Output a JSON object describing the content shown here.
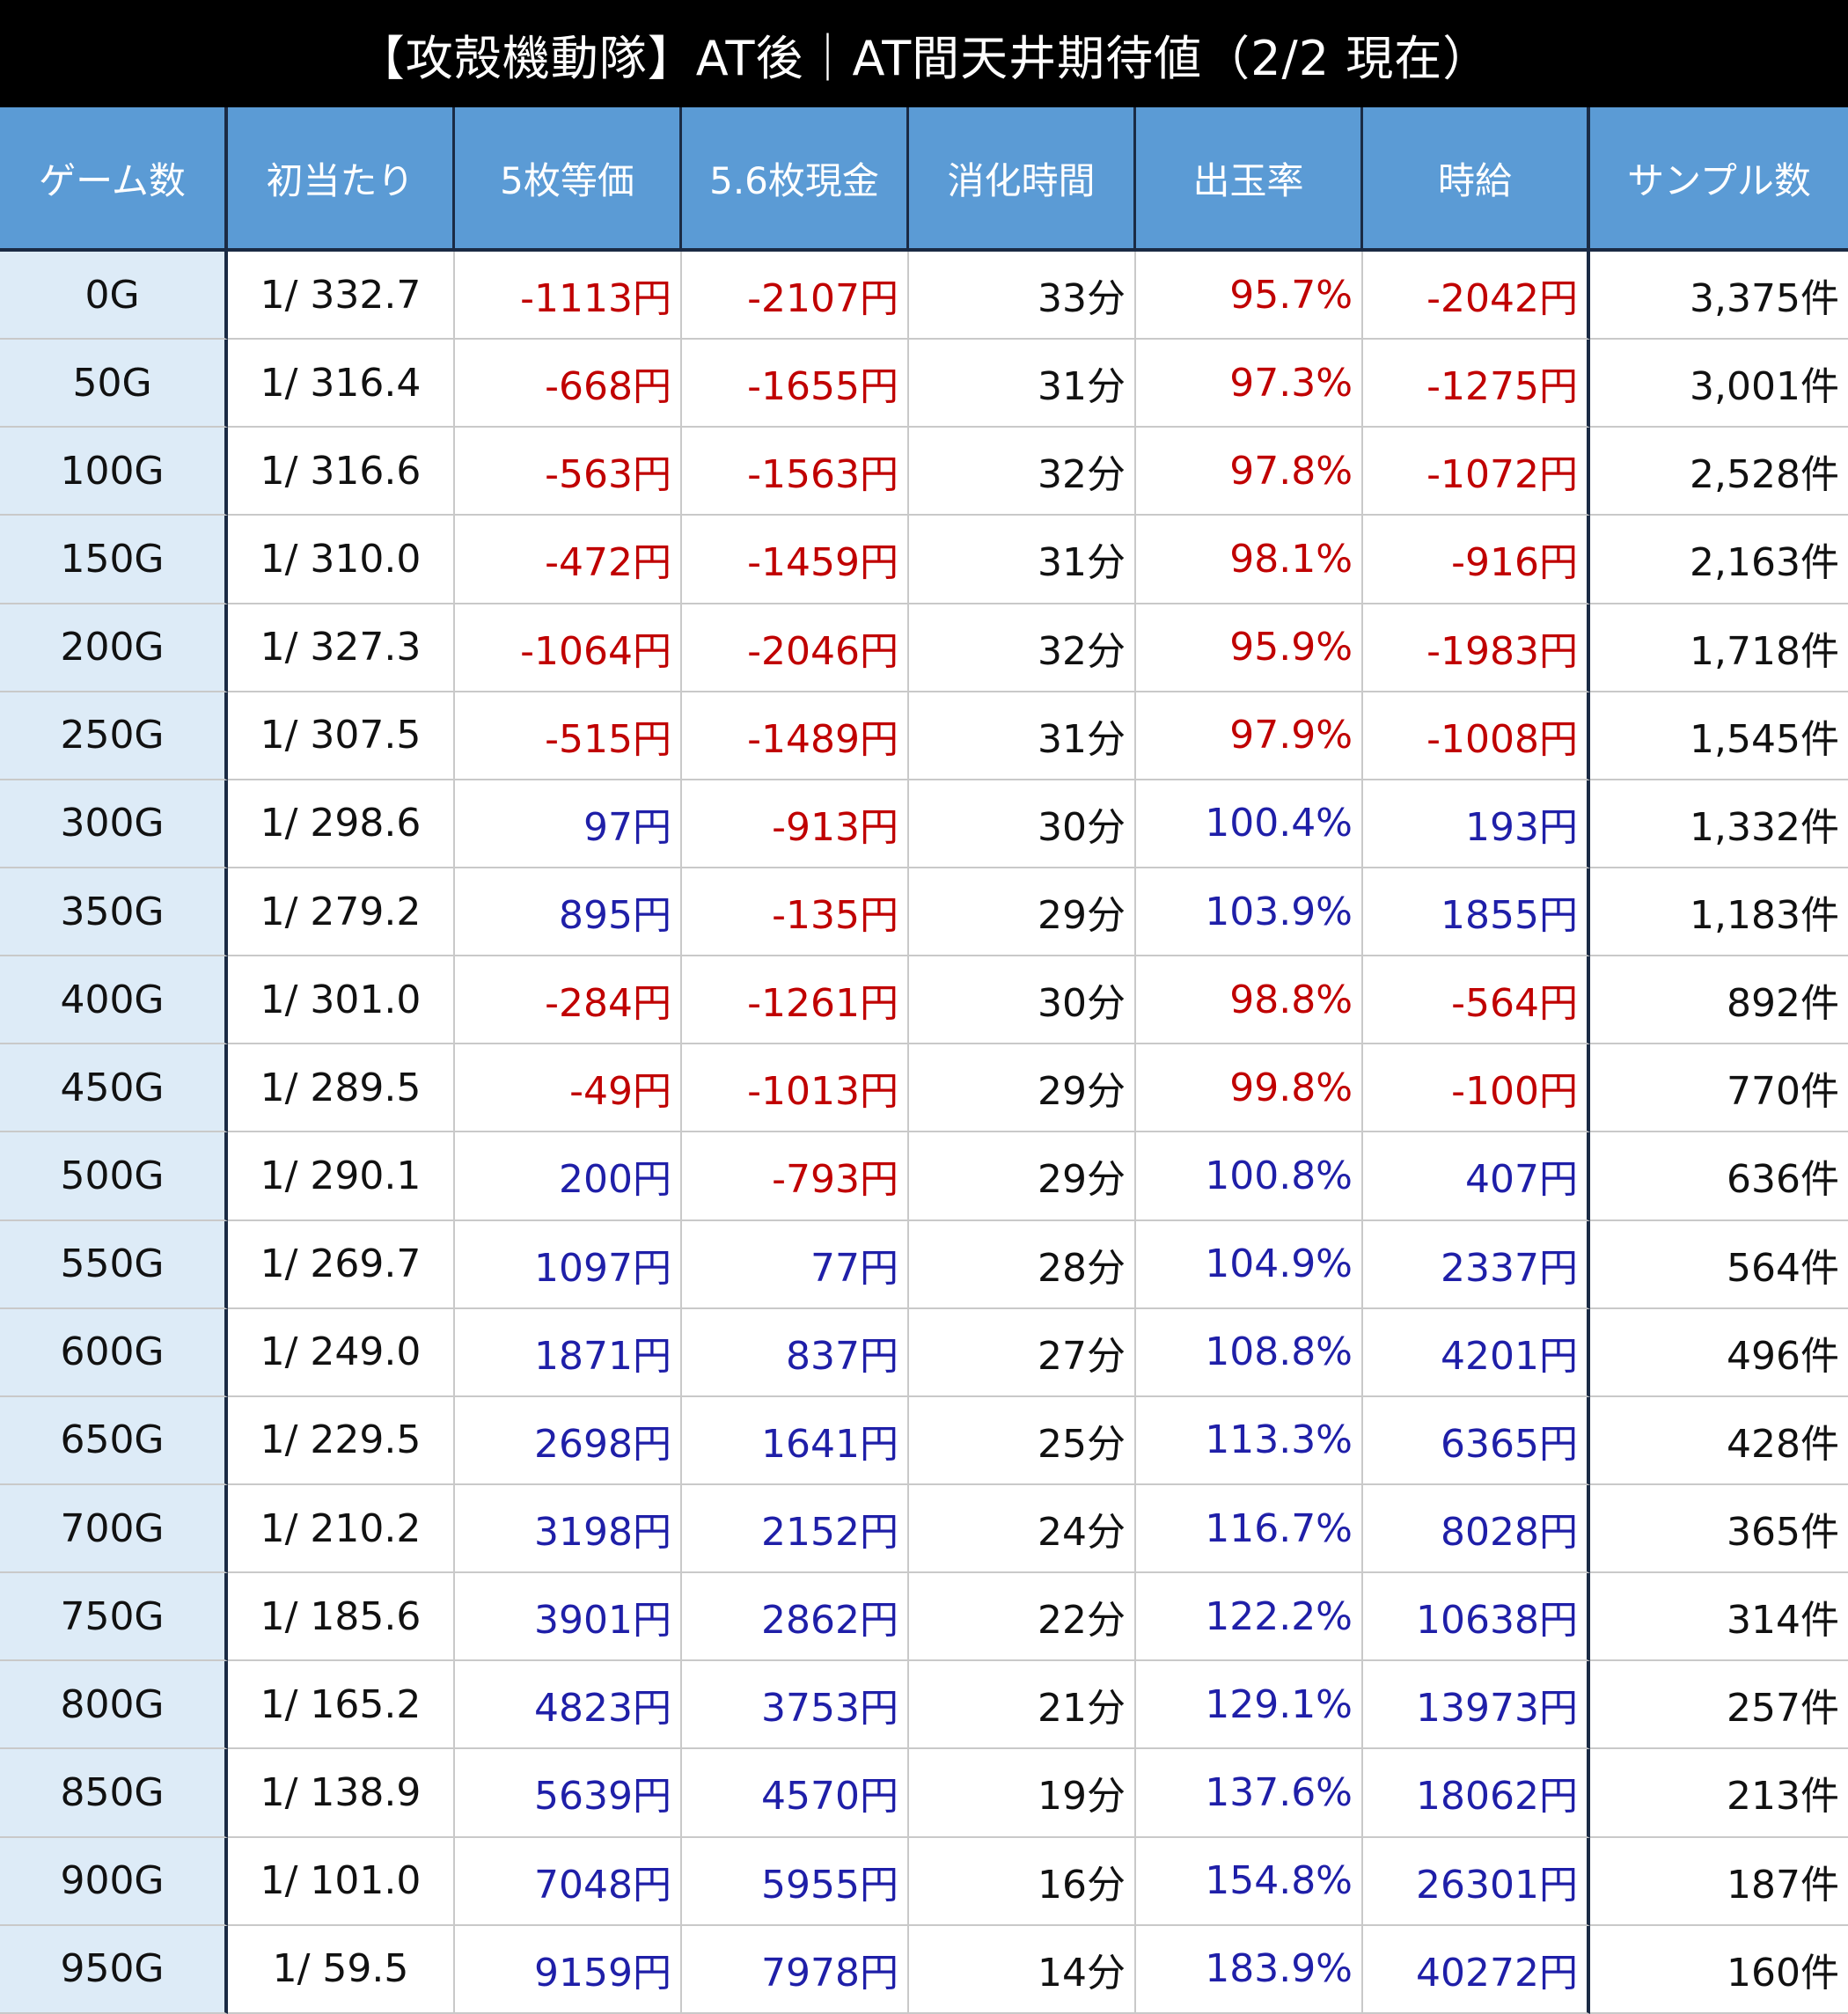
{
  "title": "【攻殻機動隊】AT後｜AT間天井期待値（2/2 現在）",
  "colors": {
    "header_bg": "#5b9bd5",
    "first_col_bg": "#ddebf7",
    "negative": "#c00000",
    "positive": "#1f1fa8"
  },
  "chart_data": {
    "type": "table",
    "columns": [
      "ゲーム数",
      "初当たり",
      "5枚等価",
      "5.6枚現金",
      "消化時間",
      "出玉率",
      "時給",
      "サンプル数"
    ],
    "rows": [
      {
        "game": "0G",
        "first_hit": "1/ 332.7",
        "eq5": "-1113円",
        "cash56": "-2107円",
        "time": "33分",
        "payout": "95.7%",
        "hourly": "-2042円",
        "samples": "3,375件"
      },
      {
        "game": "50G",
        "first_hit": "1/ 316.4",
        "eq5": "-668円",
        "cash56": "-1655円",
        "time": "31分",
        "payout": "97.3%",
        "hourly": "-1275円",
        "samples": "3,001件"
      },
      {
        "game": "100G",
        "first_hit": "1/ 316.6",
        "eq5": "-563円",
        "cash56": "-1563円",
        "time": "32分",
        "payout": "97.8%",
        "hourly": "-1072円",
        "samples": "2,528件"
      },
      {
        "game": "150G",
        "first_hit": "1/ 310.0",
        "eq5": "-472円",
        "cash56": "-1459円",
        "time": "31分",
        "payout": "98.1%",
        "hourly": "-916円",
        "samples": "2,163件"
      },
      {
        "game": "200G",
        "first_hit": "1/ 327.3",
        "eq5": "-1064円",
        "cash56": "-2046円",
        "time": "32分",
        "payout": "95.9%",
        "hourly": "-1983円",
        "samples": "1,718件"
      },
      {
        "game": "250G",
        "first_hit": "1/ 307.5",
        "eq5": "-515円",
        "cash56": "-1489円",
        "time": "31分",
        "payout": "97.9%",
        "hourly": "-1008円",
        "samples": "1,545件"
      },
      {
        "game": "300G",
        "first_hit": "1/ 298.6",
        "eq5": "97円",
        "cash56": "-913円",
        "time": "30分",
        "payout": "100.4%",
        "hourly": "193円",
        "samples": "1,332件"
      },
      {
        "game": "350G",
        "first_hit": "1/ 279.2",
        "eq5": "895円",
        "cash56": "-135円",
        "time": "29分",
        "payout": "103.9%",
        "hourly": "1855円",
        "samples": "1,183件"
      },
      {
        "game": "400G",
        "first_hit": "1/ 301.0",
        "eq5": "-284円",
        "cash56": "-1261円",
        "time": "30分",
        "payout": "98.8%",
        "hourly": "-564円",
        "samples": "892件"
      },
      {
        "game": "450G",
        "first_hit": "1/ 289.5",
        "eq5": "-49円",
        "cash56": "-1013円",
        "time": "29分",
        "payout": "99.8%",
        "hourly": "-100円",
        "samples": "770件"
      },
      {
        "game": "500G",
        "first_hit": "1/ 290.1",
        "eq5": "200円",
        "cash56": "-793円",
        "time": "29分",
        "payout": "100.8%",
        "hourly": "407円",
        "samples": "636件"
      },
      {
        "game": "550G",
        "first_hit": "1/ 269.7",
        "eq5": "1097円",
        "cash56": "77円",
        "time": "28分",
        "payout": "104.9%",
        "hourly": "2337円",
        "samples": "564件"
      },
      {
        "game": "600G",
        "first_hit": "1/ 249.0",
        "eq5": "1871円",
        "cash56": "837円",
        "time": "27分",
        "payout": "108.8%",
        "hourly": "4201円",
        "samples": "496件"
      },
      {
        "game": "650G",
        "first_hit": "1/ 229.5",
        "eq5": "2698円",
        "cash56": "1641円",
        "time": "25分",
        "payout": "113.3%",
        "hourly": "6365円",
        "samples": "428件"
      },
      {
        "game": "700G",
        "first_hit": "1/ 210.2",
        "eq5": "3198円",
        "cash56": "2152円",
        "time": "24分",
        "payout": "116.7%",
        "hourly": "8028円",
        "samples": "365件"
      },
      {
        "game": "750G",
        "first_hit": "1/ 185.6",
        "eq5": "3901円",
        "cash56": "2862円",
        "time": "22分",
        "payout": "122.2%",
        "hourly": "10638円",
        "samples": "314件"
      },
      {
        "game": "800G",
        "first_hit": "1/ 165.2",
        "eq5": "4823円",
        "cash56": "3753円",
        "time": "21分",
        "payout": "129.1%",
        "hourly": "13973円",
        "samples": "257件"
      },
      {
        "game": "850G",
        "first_hit": "1/ 138.9",
        "eq5": "5639円",
        "cash56": "4570円",
        "time": "19分",
        "payout": "137.6%",
        "hourly": "18062円",
        "samples": "213件"
      },
      {
        "game": "900G",
        "first_hit": "1/ 101.0",
        "eq5": "7048円",
        "cash56": "5955円",
        "time": "16分",
        "payout": "154.8%",
        "hourly": "26301円",
        "samples": "187件"
      },
      {
        "game": "950G",
        "first_hit": "1/ 59.5",
        "eq5": "9159円",
        "cash56": "7978円",
        "time": "14分",
        "payout": "183.9%",
        "hourly": "40272円",
        "samples": "160件"
      }
    ]
  }
}
